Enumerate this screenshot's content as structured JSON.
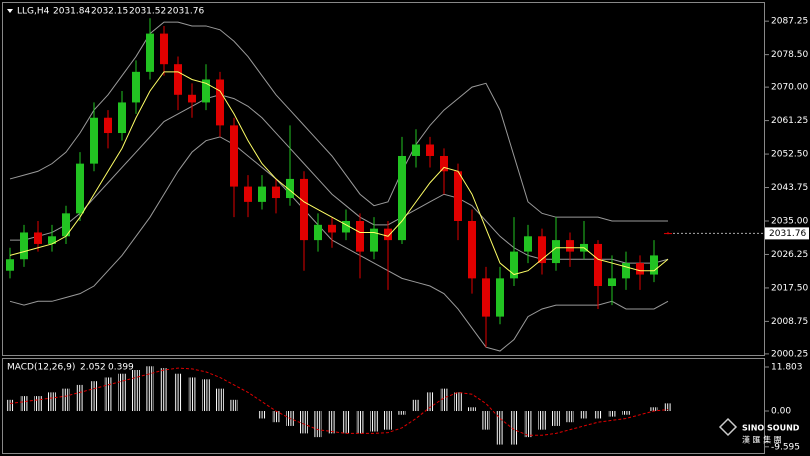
{
  "chart_data": [
    {
      "type": "candlestick",
      "title": "LLG,H4",
      "candles": [
        [
          2022,
          2028,
          2020,
          2025
        ],
        [
          2025,
          2034,
          2023,
          2032
        ],
        [
          2032,
          2035,
          2027,
          2029
        ],
        [
          2029,
          2034,
          2027,
          2031
        ],
        [
          2031,
          2039,
          2029,
          2037
        ],
        [
          2037,
          2053,
          2035,
          2050
        ],
        [
          2050,
          2066,
          2048,
          2062
        ],
        [
          2062,
          2064,
          2054,
          2058
        ],
        [
          2058,
          2069,
          2056,
          2066
        ],
        [
          2066,
          2077,
          2063,
          2074
        ],
        [
          2074,
          2088,
          2072,
          2084
        ],
        [
          2084,
          2086,
          2073,
          2076
        ],
        [
          2076,
          2078,
          2064,
          2068
        ],
        [
          2068,
          2071,
          2062,
          2066
        ],
        [
          2066,
          2076,
          2064,
          2072
        ],
        [
          2072,
          2074,
          2057,
          2060
        ],
        [
          2060,
          2062,
          2036,
          2044
        ],
        [
          2044,
          2047,
          2036,
          2040
        ],
        [
          2040,
          2047,
          2038,
          2044
        ],
        [
          2044,
          2046,
          2037,
          2041
        ],
        [
          2041,
          2060,
          2039,
          2046
        ],
        [
          2046,
          2048,
          2022,
          2030
        ],
        [
          2030,
          2037,
          2027,
          2034
        ],
        [
          2034,
          2036,
          2028,
          2032
        ],
        [
          2032,
          2038,
          2030,
          2035
        ],
        [
          2035,
          2037,
          2020,
          2027
        ],
        [
          2027,
          2036,
          2025,
          2033
        ],
        [
          2033,
          2035,
          2017,
          2030
        ],
        [
          2030,
          2057,
          2029,
          2052
        ],
        [
          2052,
          2059,
          2049,
          2055
        ],
        [
          2055,
          2057,
          2049,
          2052
        ],
        [
          2052,
          2054,
          2042,
          2048
        ],
        [
          2048,
          2050,
          2030,
          2035
        ],
        [
          2035,
          2038,
          2016,
          2020
        ],
        [
          2020,
          2023,
          2002,
          2010
        ],
        [
          2010,
          2023,
          2008,
          2020
        ],
        [
          2020,
          2036,
          2018,
          2027
        ],
        [
          2027,
          2034,
          2024,
          2031
        ],
        [
          2031,
          2033,
          2021,
          2024
        ],
        [
          2024,
          2036,
          2022,
          2030
        ],
        [
          2030,
          2032,
          2023,
          2027
        ],
        [
          2027,
          2035,
          2025,
          2029
        ],
        [
          2029,
          2030,
          2012,
          2018
        ],
        [
          2018,
          2026,
          2013,
          2020
        ],
        [
          2020,
          2027,
          2017,
          2024
        ],
        [
          2024,
          2026,
          2017,
          2021
        ],
        [
          2021,
          2030,
          2019,
          2026
        ],
        [
          2031.84,
          2032.15,
          2031.52,
          2031.76
        ]
      ],
      "upper": [
        2046,
        2047,
        2048,
        2050,
        2053,
        2058,
        2064,
        2068,
        2073,
        2078,
        2084,
        2087,
        2087,
        2086,
        2086,
        2085,
        2082,
        2078,
        2073,
        2068,
        2064,
        2060,
        2056,
        2052,
        2047,
        2042,
        2039,
        2040,
        2048,
        2055,
        2060,
        2064,
        2067,
        2070,
        2071,
        2064,
        2052,
        2040,
        2037,
        2036,
        2036,
        2036,
        2036,
        2035,
        2035,
        2035,
        2035,
        2035
      ],
      "middle": [
        2030,
        2030,
        2031,
        2032,
        2034,
        2037,
        2041,
        2045,
        2049,
        2053,
        2057,
        2061,
        2063,
        2065,
        2067,
        2068,
        2067,
        2065,
        2062,
        2058,
        2054,
        2050,
        2046,
        2042,
        2039,
        2036,
        2034,
        2034,
        2036,
        2038,
        2040,
        2042,
        2041,
        2039,
        2035,
        2031,
        2028,
        2026,
        2025,
        2025,
        2025,
        2025,
        2025,
        2025,
        2024,
        2024,
        2024,
        2025
      ],
      "lower": [
        2014,
        2013,
        2014,
        2014,
        2015,
        2016,
        2018,
        2022,
        2026,
        2031,
        2036,
        2042,
        2048,
        2053,
        2056,
        2057,
        2055,
        2052,
        2049,
        2046,
        2042,
        2038,
        2034,
        2030,
        2028,
        2026,
        2024,
        2022,
        2020,
        2019,
        2018,
        2016,
        2012,
        2007,
        2002,
        2001,
        2004,
        2010,
        2012,
        2013,
        2013,
        2013,
        2013,
        2014,
        2012,
        2012,
        2012,
        2014
      ],
      "ma": [
        2026,
        2027,
        2028,
        2029,
        2031,
        2036,
        2042,
        2048,
        2054,
        2062,
        2069,
        2074,
        2074,
        2072,
        2071,
        2069,
        2063,
        2056,
        2050,
        2046,
        2043,
        2040,
        2038,
        2036,
        2034,
        2032,
        2032,
        2031,
        2035,
        2040,
        2045,
        2049,
        2048,
        2042,
        2033,
        2024,
        2021,
        2022,
        2025,
        2028,
        2028,
        2028,
        2025,
        2024,
        2023,
        2022,
        2022,
        2025
      ],
      "up_color": "#22c322",
      "down_color": "#e00000",
      "band_color": "#9a9a9a",
      "ma_color": "#ffff66",
      "ylim": [
        1999.7,
        2092
      ],
      "yticks": [
        {
          "value": 2087.25,
          "label": "2087.25"
        },
        {
          "value": 2078.5,
          "label": "2078.50"
        },
        {
          "value": 2070,
          "label": "2070.00"
        },
        {
          "value": 2061.25,
          "label": "2061.25"
        },
        {
          "value": 2052.5,
          "label": "2052.50"
        },
        {
          "value": 2043.75,
          "label": "2043.75"
        },
        {
          "value": 2035,
          "label": "2035.00"
        },
        {
          "value": 2026.25,
          "label": "2026.25"
        },
        {
          "value": 2017.5,
          "label": "2017.50"
        },
        {
          "value": 2008.75,
          "label": "2008.75"
        },
        {
          "value": 2000.25,
          "label": "2000.25"
        }
      ]
    },
    {
      "type": "macd",
      "title": "MACD(12,26,9)",
      "values": [
        3,
        4,
        4,
        5,
        6,
        7,
        8,
        9,
        10,
        11,
        12,
        11.5,
        10,
        9,
        8.5,
        6,
        3,
        0,
        -2,
        -3,
        -4,
        -6,
        -7,
        -6,
        -6,
        -6,
        -5.5,
        -5,
        -1,
        3,
        5,
        6,
        5,
        1,
        -5,
        -9,
        -9,
        -7,
        -5,
        -4,
        -3,
        -2,
        -2,
        -1.5,
        -1,
        0,
        1,
        2.052
      ],
      "signal": [
        2,
        2.5,
        3,
        3.5,
        4,
        5,
        6,
        7,
        8,
        9,
        10,
        11,
        11.5,
        11.3,
        10.5,
        9,
        7,
        5,
        2.5,
        0,
        -2,
        -3.5,
        -5,
        -5.5,
        -6,
        -6,
        -6,
        -5.8,
        -4.5,
        -2,
        1,
        3.5,
        5,
        4.5,
        2,
        -2,
        -5,
        -6.5,
        -6.5,
        -6,
        -5,
        -4,
        -3,
        -2.5,
        -2,
        -1,
        0,
        0.399
      ],
      "color": "#ffffff",
      "signal_color": "#e00000",
      "ylim": [
        -11.26,
        13.95
      ],
      "yticks": [
        11.803,
        {
          "value": 0,
          "label": "0.00"
        },
        -9.595
      ]
    }
  ],
  "logo": {
    "name": "SINO SOUND",
    "subtitle": "漢 匯 集 團"
  }
}
